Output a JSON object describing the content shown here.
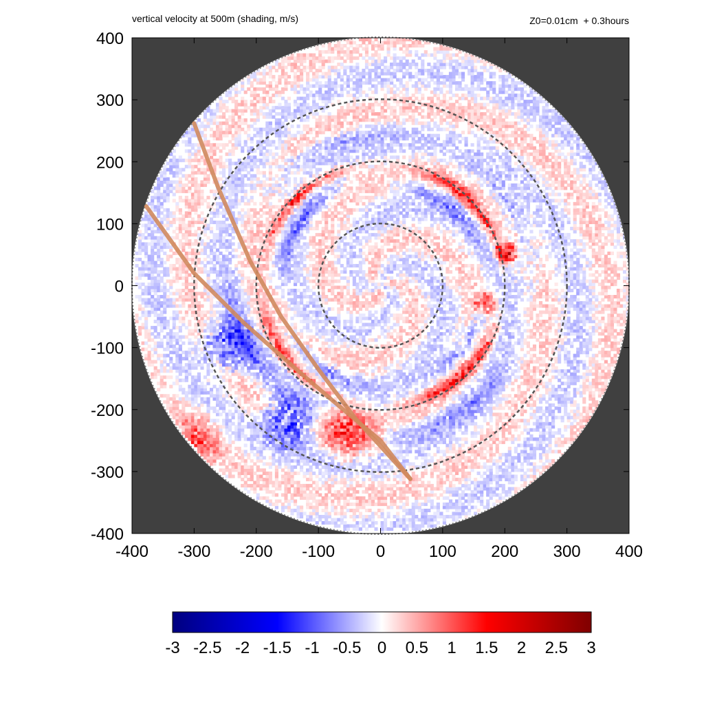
{
  "chart_data": {
    "type": "heatmap",
    "title": "vertical velocity at 500m (shading, m/s)",
    "subtitle": "Z0=0.01cm  + 0.3hours",
    "xlim": [
      -400,
      400
    ],
    "ylim": [
      -400,
      400
    ],
    "x_ticks": [
      "-400",
      "-300",
      "-200",
      "-100",
      "0",
      "100",
      "200",
      "300",
      "400"
    ],
    "y_ticks": [
      "400",
      "300",
      "200",
      "100",
      "0",
      "-100",
      "-200",
      "-300",
      "-400"
    ],
    "x_tick_values": [
      -400,
      -300,
      -200,
      -100,
      0,
      100,
      200,
      300,
      400
    ],
    "y_tick_values": [
      400,
      300,
      200,
      100,
      0,
      -100,
      -200,
      -300,
      -400
    ],
    "domain_radius": 400,
    "background_color": "#404040",
    "reference_circle_radii": [
      100,
      200,
      300
    ],
    "track_lines": [
      {
        "color": "#d08a5e",
        "points": [
          [
            -300,
            262
          ],
          [
            -262,
            160
          ],
          [
            -210,
            40
          ],
          [
            -160,
            -50
          ],
          [
            -100,
            -135
          ],
          [
            -40,
            -215
          ],
          [
            48,
            -312
          ]
        ]
      },
      {
        "color": "#d08a5e",
        "points": [
          [
            -377,
            128
          ],
          [
            -300,
            20
          ],
          [
            -220,
            -60
          ],
          [
            -130,
            -140
          ],
          [
            -60,
            -200
          ],
          [
            0,
            -250
          ],
          [
            48,
            -312
          ]
        ]
      }
    ],
    "colorbar": {
      "min": -3,
      "max": 3,
      "ticks": [
        "-3",
        "-2.5",
        "-2",
        "-1.5",
        "-1",
        "-0.5",
        "0",
        "0.5",
        "1",
        "1.5",
        "2",
        "2.5",
        "3"
      ],
      "tick_values": [
        -3,
        -2.5,
        -2,
        -1.5,
        -1,
        -0.5,
        0,
        0.5,
        1,
        1.5,
        2,
        2.5,
        3
      ],
      "colors": [
        "#00007f",
        "#0000ff",
        "#ffffff",
        "#ff0000",
        "#7f0000"
      ]
    },
    "features": [
      {
        "type": "ring",
        "radius": 195,
        "strength": 1.6,
        "width": 14
      },
      {
        "type": "ring",
        "radius": 165,
        "strength": -0.8,
        "width": 18
      },
      {
        "type": "ring",
        "radius": 240,
        "strength": -0.6,
        "width": 25
      },
      {
        "type": "eyewall",
        "cx": 200,
        "cy": 50,
        "strength": 2.5
      },
      {
        "type": "eyewall",
        "cx": 165,
        "cy": -30,
        "strength": 1.8
      },
      {
        "type": "band",
        "cx": -250,
        "cy": -100,
        "strength": -1.2
      },
      {
        "type": "band",
        "cx": -150,
        "cy": -220,
        "strength": -1.4
      },
      {
        "type": "band",
        "cx": -50,
        "cy": -240,
        "strength": 1.3
      },
      {
        "type": "band",
        "cx": -300,
        "cy": -250,
        "strength": 0.9
      }
    ]
  }
}
